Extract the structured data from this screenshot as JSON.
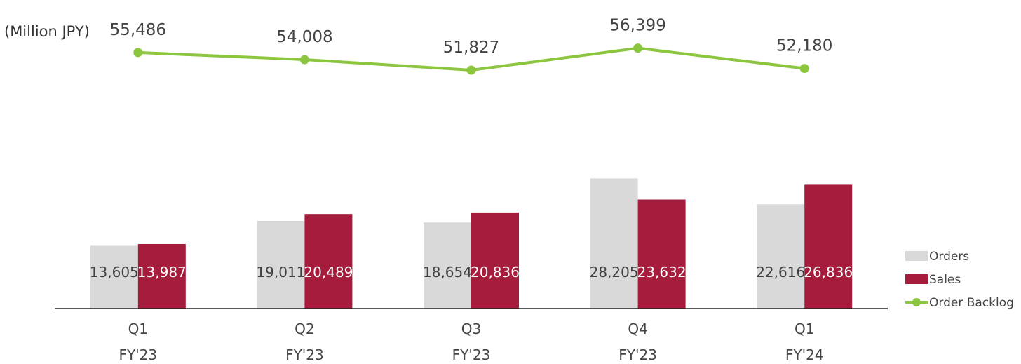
{
  "chart_data": {
    "type": "bar",
    "unit_label": "(Million JPY)",
    "categories": [
      {
        "quarter": "Q1",
        "fiscal_year": "FY'23"
      },
      {
        "quarter": "Q2",
        "fiscal_year": "FY'23"
      },
      {
        "quarter": "Q3",
        "fiscal_year": "FY'23"
      },
      {
        "quarter": "Q4",
        "fiscal_year": "FY'23"
      },
      {
        "quarter": "Q1",
        "fiscal_year": "FY'24"
      }
    ],
    "series": [
      {
        "name": "Orders",
        "kind": "bar",
        "color": "#d9d9d9",
        "label_color": "#404040",
        "values": [
          13605,
          19011,
          18654,
          28205,
          22616
        ],
        "labels": [
          "13,605",
          "19,011",
          "18,654",
          "28,205",
          "22,616"
        ]
      },
      {
        "name": "Sales",
        "kind": "bar",
        "color": "#a61c3c",
        "label_color": "#ffffff",
        "values": [
          13987,
          20489,
          20836,
          23632,
          26836
        ],
        "labels": [
          "13,987",
          "20,489",
          "20,836",
          "23,632",
          "26,836"
        ]
      },
      {
        "name": "Order Backlog",
        "kind": "line",
        "color": "#8cc63f",
        "values": [
          55486,
          54008,
          51827,
          56399,
          52180
        ],
        "labels": [
          "55,486",
          "54,008",
          "51,827",
          "56,399",
          "52,180"
        ]
      }
    ],
    "legend_position": "right",
    "grid": false,
    "y_axis_visible": false
  }
}
